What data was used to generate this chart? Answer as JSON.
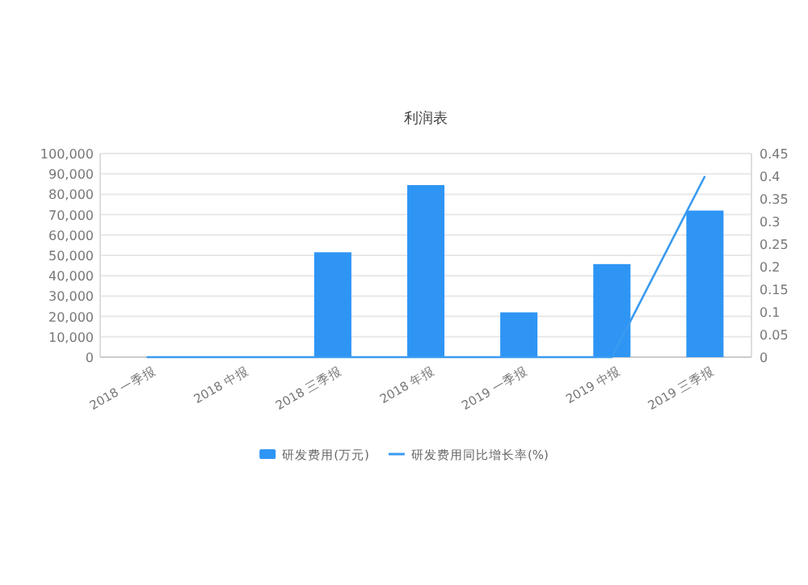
{
  "chart_data": {
    "type": "bar",
    "title": "利润表",
    "categories": [
      "2018 一季报",
      "2018 中报",
      "2018 三季报",
      "2018 年报",
      "2019 一季报",
      "2019 中报",
      "2019 三季报"
    ],
    "series": [
      {
        "name": "研发费用(万元)",
        "color": "#2e95f5",
        "values": [
          null,
          null,
          51500,
          84500,
          22000,
          45700,
          72000
        ]
      },
      {
        "name": "研发费用同比增长率(%)",
        "type": "line",
        "axis": "y2",
        "color": "#3a9af0",
        "values": [
          0,
          0,
          0,
          0,
          0,
          0,
          0.4
        ]
      }
    ],
    "ylim": [
      0,
      100000
    ],
    "yticks": [
      {
        "value": 0,
        "label": "0"
      },
      {
        "value": 10000,
        "label": "10,000"
      },
      {
        "value": 20000,
        "label": "20,000"
      },
      {
        "value": 30000,
        "label": "30,000"
      },
      {
        "value": 40000,
        "label": "40,000"
      },
      {
        "value": 50000,
        "label": "50,000"
      },
      {
        "value": 60000,
        "label": "60,000"
      },
      {
        "value": 70000,
        "label": "70,000"
      },
      {
        "value": 80000,
        "label": "80,000"
      },
      {
        "value": 90000,
        "label": "90,000"
      },
      {
        "value": 100000,
        "label": "100,000"
      }
    ],
    "y2lim": [
      0,
      0.45
    ],
    "y2ticks": [
      0,
      0.05,
      0.1,
      0.15,
      0.2,
      0.25,
      0.3,
      0.35,
      0.4,
      0.45
    ],
    "grid": "y",
    "legend": "bottom"
  }
}
